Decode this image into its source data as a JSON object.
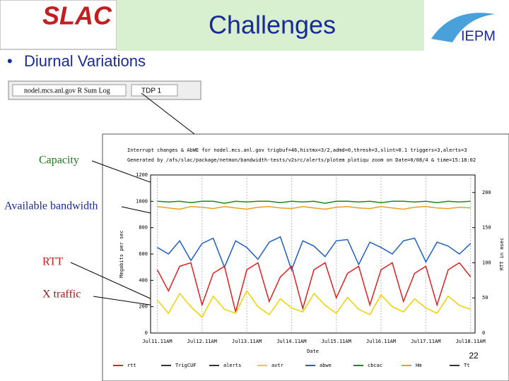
{
  "slide": {
    "title": "Challenges",
    "bullet": "Diurnal Variations",
    "toolbar": {
      "host": "nodel.mcs.anl.gov R Sum Log",
      "field": "TDP 1"
    },
    "labels": [
      "Capacity",
      "Available bandwidth",
      "RTT",
      "X traffic"
    ],
    "page_number": "22"
  },
  "chart_data": {
    "type": "line",
    "header": [
      "Interrupt changes & AbWE for nodel.mcs.anl.gov trigbuf=46,histmx=3/2,admd=0,thresh=3,slint=0.1 triggers=3,alerts=3",
      "Generated by /afs/slac/package/netmon/bandwidth-tests/v2src/alerts/plotem plotiqu zoom on Date=0/08/4 & time=15:18:02"
    ],
    "ylabel": "Megabits per sec",
    "y2label": "RTT in msec",
    "xlabel": "Date",
    "xlim": [
      -0.15,
      7.1
    ],
    "xticks": [
      {
        "value": 0,
        "label": "Jul11.11AM"
      },
      {
        "value": 1,
        "label": "Jul12.11AM"
      },
      {
        "value": 2,
        "label": "Jul13.11AM"
      },
      {
        "value": 3,
        "label": "Jul14.11AM"
      },
      {
        "value": 4,
        "label": "Jul15.11AM"
      },
      {
        "value": 5,
        "label": "Jul16.11AM"
      },
      {
        "value": 6,
        "label": "Jul17.11AM"
      },
      {
        "value": 7,
        "label": "Jul18.11AM"
      }
    ],
    "ylim": [
      0,
      1200
    ],
    "yticks": [
      0,
      200,
      400,
      600,
      800,
      1000,
      1200
    ],
    "y2lim": [
      0,
      225
    ],
    "y2ticks": [
      0,
      50,
      100,
      150,
      200
    ],
    "x": [
      0,
      0.25,
      0.5,
      0.75,
      1,
      1.25,
      1.5,
      1.75,
      2,
      2.25,
      2.5,
      2.75,
      3,
      3.25,
      3.5,
      3.75,
      4,
      4.25,
      4.5,
      4.75,
      5,
      5.25,
      5.5,
      5.75,
      6,
      6.25,
      6.5,
      6.75,
      7
    ],
    "series": [
      {
        "name": "cbcac",
        "color": "#1a8a1a",
        "values": [
          1000,
          995,
          1000,
          990,
          1000,
          1000,
          985,
          1000,
          995,
          1000,
          1000,
          990,
          1000,
          995,
          1000,
          985,
          1000,
          1000,
          995,
          1000,
          990,
          1000,
          1000,
          995,
          1000,
          990,
          1000,
          995,
          1000
        ]
      },
      {
        "name": "Hm",
        "color": "#e8a020",
        "values": [
          960,
          950,
          940,
          960,
          955,
          945,
          960,
          950,
          940,
          955,
          960,
          950,
          945,
          960,
          950,
          940,
          955,
          960,
          950,
          945,
          960,
          950,
          940,
          955,
          960,
          950,
          945,
          955,
          950
        ]
      },
      {
        "name": "abwe",
        "color": "#2060c0",
        "values": [
          650,
          600,
          700,
          550,
          680,
          720,
          500,
          700,
          650,
          560,
          690,
          730,
          480,
          700,
          660,
          580,
          700,
          710,
          520,
          690,
          650,
          600,
          700,
          720,
          540,
          690,
          660,
          600,
          680
        ]
      },
      {
        "name": "rtt",
        "color": "#e02020",
        "axis": "y2",
        "values": [
          90,
          60,
          95,
          100,
          40,
          85,
          95,
          30,
          90,
          100,
          45,
          80,
          95,
          35,
          90,
          100,
          50,
          85,
          95,
          40,
          90,
          100,
          45,
          85,
          95,
          40,
          90,
          100,
          80
        ]
      },
      {
        "name": "avtr",
        "color": "#f0d000",
        "values": [
          250,
          150,
          300,
          200,
          120,
          280,
          180,
          150,
          320,
          200,
          140,
          260,
          190,
          160,
          300,
          210,
          150,
          270,
          180,
          140,
          290,
          200,
          160,
          260,
          190,
          150,
          280,
          210,
          180
        ]
      }
    ],
    "legend": [
      "rtt",
      "TrigCUF",
      "alerts",
      "avtr",
      "abwe",
      "cbcac",
      "Hm",
      "Tt"
    ]
  }
}
